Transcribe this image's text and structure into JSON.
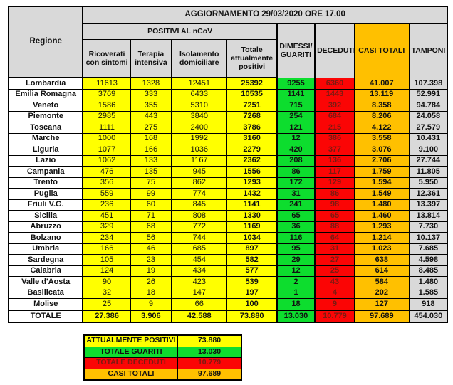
{
  "title": "AGGIORNAMENTO 29/03/2020 ORE 17.00",
  "colors": {
    "gray": "#d9d9d9",
    "yellow": "#ffff00",
    "green": "#0ddd2e",
    "red": "#fb0505",
    "orange": "#ffc000",
    "darkred": "#7a1b12"
  },
  "table": {
    "headers": {
      "regione": "Regione",
      "positivi_group": "POSITIVI AL nCoV",
      "ricoverati": "Ricoverati con sintomi",
      "terapia": "Terapia intensiva",
      "isolamento": "Isolamento domiciliare",
      "totale_positivi": "Totale attualmente positivi",
      "dimessi": "DIMESSI/ GUARITI",
      "deceduti": "DECEDUTI",
      "casi_totali": "CASI TOTALI",
      "tamponi": "TAMPONI"
    },
    "rows": [
      [
        "Lombardia",
        "11613",
        "1328",
        "12451",
        "25392",
        "9255",
        "6360",
        "41.007",
        "107.398"
      ],
      [
        "Emilia Romagna",
        "3769",
        "333",
        "6433",
        "10535",
        "1141",
        "1443",
        "13.119",
        "52.991"
      ],
      [
        "Veneto",
        "1586",
        "355",
        "5310",
        "7251",
        "715",
        "392",
        "8.358",
        "94.784"
      ],
      [
        "Piemonte",
        "2985",
        "443",
        "3840",
        "7268",
        "254",
        "684",
        "8.206",
        "24.058"
      ],
      [
        "Toscana",
        "1111",
        "275",
        "2400",
        "3786",
        "121",
        "215",
        "4.122",
        "27.579"
      ],
      [
        "Marche",
        "1000",
        "168",
        "1992",
        "3160",
        "12",
        "386",
        "3.558",
        "10.431"
      ],
      [
        "Liguria",
        "1077",
        "166",
        "1036",
        "2279",
        "420",
        "377",
        "3.076",
        "9.100"
      ],
      [
        "Lazio",
        "1062",
        "133",
        "1167",
        "2362",
        "208",
        "136",
        "2.706",
        "27.744"
      ],
      [
        "Campania",
        "476",
        "135",
        "945",
        "1556",
        "86",
        "117",
        "1.759",
        "11.805"
      ],
      [
        "Trento",
        "356",
        "75",
        "862",
        "1293",
        "172",
        "129",
        "1.594",
        "5.950"
      ],
      [
        "Puglia",
        "559",
        "99",
        "774",
        "1432",
        "31",
        "86",
        "1.549",
        "12.361"
      ],
      [
        "Friuli V.G.",
        "236",
        "60",
        "845",
        "1141",
        "241",
        "98",
        "1.480",
        "13.397"
      ],
      [
        "Sicilia",
        "451",
        "71",
        "808",
        "1330",
        "65",
        "65",
        "1.460",
        "13.814"
      ],
      [
        "Abruzzo",
        "329",
        "68",
        "772",
        "1169",
        "36",
        "88",
        "1.293",
        "7.730"
      ],
      [
        "Bolzano",
        "234",
        "56",
        "744",
        "1034",
        "116",
        "64",
        "1.214",
        "10.137"
      ],
      [
        "Umbria",
        "166",
        "46",
        "685",
        "897",
        "95",
        "31",
        "1.023",
        "7.685"
      ],
      [
        "Sardegna",
        "105",
        "23",
        "454",
        "582",
        "29",
        "27",
        "638",
        "4.598"
      ],
      [
        "Calabria",
        "124",
        "19",
        "434",
        "577",
        "12",
        "25",
        "614",
        "8.485"
      ],
      [
        "Valle d'Aosta",
        "90",
        "26",
        "423",
        "539",
        "2",
        "43",
        "584",
        "1.480"
      ],
      [
        "Basilicata",
        "32",
        "18",
        "147",
        "197",
        "1",
        "4",
        "202",
        "1.585"
      ],
      [
        "Molise",
        "25",
        "9",
        "66",
        "100",
        "18",
        "9",
        "127",
        "918"
      ]
    ],
    "total_row": [
      "TOTALE",
      "27.386",
      "3.906",
      "42.588",
      "73.880",
      "13.030",
      "10.779",
      "97.689",
      "454.030"
    ]
  },
  "summary": {
    "rows": [
      {
        "label": "ATTUALMENTE POSITIVI",
        "value": "73.880",
        "color": "yellow"
      },
      {
        "label": "TOTALE GUARITI",
        "value": "13.030",
        "color": "green"
      },
      {
        "label": "TOTALE DECEDUTI",
        "value": "10.779",
        "color": "red"
      },
      {
        "label": "CASI TOTALI",
        "value": "97.689",
        "color": "orange"
      }
    ]
  },
  "chart_data": {
    "type": "table",
    "title": "AGGIORNAMENTO 29/03/2020 ORE 17.00",
    "columns": [
      "Regione",
      "Ricoverati con sintomi",
      "Terapia intensiva",
      "Isolamento domiciliare",
      "Totale attualmente positivi",
      "Dimessi/Guariti",
      "Deceduti",
      "Casi totali",
      "Tamponi"
    ],
    "rows": [
      [
        "Lombardia",
        11613,
        1328,
        12451,
        25392,
        9255,
        6360,
        41007,
        107398
      ],
      [
        "Emilia Romagna",
        3769,
        333,
        6433,
        10535,
        1141,
        1443,
        13119,
        52991
      ],
      [
        "Veneto",
        1586,
        355,
        5310,
        7251,
        715,
        392,
        8358,
        94784
      ],
      [
        "Piemonte",
        2985,
        443,
        3840,
        7268,
        254,
        684,
        8206,
        24058
      ],
      [
        "Toscana",
        1111,
        275,
        2400,
        3786,
        121,
        215,
        4122,
        27579
      ],
      [
        "Marche",
        1000,
        168,
        1992,
        3160,
        12,
        386,
        3558,
        10431
      ],
      [
        "Liguria",
        1077,
        166,
        1036,
        2279,
        420,
        377,
        3076,
        9100
      ],
      [
        "Lazio",
        1062,
        133,
        1167,
        2362,
        208,
        136,
        2706,
        27744
      ],
      [
        "Campania",
        476,
        135,
        945,
        1556,
        86,
        117,
        1759,
        11805
      ],
      [
        "Trento",
        356,
        75,
        862,
        1293,
        172,
        129,
        1594,
        5950
      ],
      [
        "Puglia",
        559,
        99,
        774,
        1432,
        31,
        86,
        1549,
        12361
      ],
      [
        "Friuli V.G.",
        236,
        60,
        845,
        1141,
        241,
        98,
        1480,
        13397
      ],
      [
        "Sicilia",
        451,
        71,
        808,
        1330,
        65,
        65,
        1460,
        13814
      ],
      [
        "Abruzzo",
        329,
        68,
        772,
        1169,
        36,
        88,
        1293,
        7730
      ],
      [
        "Bolzano",
        234,
        56,
        744,
        1034,
        116,
        64,
        1214,
        10137
      ],
      [
        "Umbria",
        166,
        46,
        685,
        897,
        95,
        31,
        1023,
        7685
      ],
      [
        "Sardegna",
        105,
        23,
        454,
        582,
        29,
        27,
        638,
        4598
      ],
      [
        "Calabria",
        124,
        19,
        434,
        577,
        12,
        25,
        614,
        8485
      ],
      [
        "Valle d'Aosta",
        90,
        26,
        423,
        539,
        2,
        43,
        584,
        1480
      ],
      [
        "Basilicata",
        32,
        18,
        147,
        197,
        1,
        4,
        202,
        1585
      ],
      [
        "Molise",
        25,
        9,
        66,
        100,
        18,
        9,
        127,
        918
      ],
      [
        "TOTALE",
        27386,
        3906,
        42588,
        73880,
        13030,
        10779,
        97689,
        454030
      ]
    ],
    "summary": [
      {
        "label": "ATTUALMENTE POSITIVI",
        "value": 73880
      },
      {
        "label": "TOTALE GUARITI",
        "value": 13030
      },
      {
        "label": "TOTALE DECEDUTI",
        "value": 10779
      },
      {
        "label": "CASI TOTALI",
        "value": 97689
      }
    ]
  }
}
